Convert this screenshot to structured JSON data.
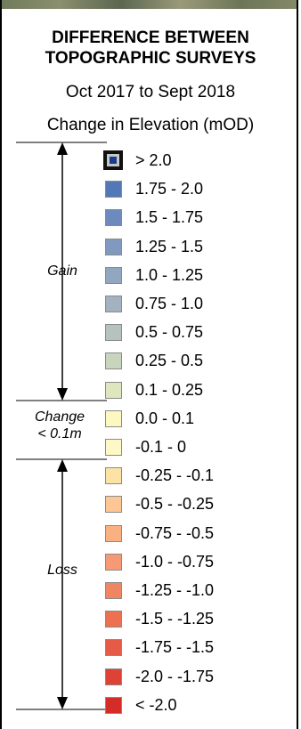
{
  "header": {
    "title_line1": "DIFFERENCE BETWEEN",
    "title_line2": "TOPOGRAPHIC SURVEYS",
    "period": "Oct 2017 to Sept 2018",
    "measure": "Change in Elevation (mOD)"
  },
  "side_labels": {
    "gain": "Gain",
    "change_line1": "Change",
    "change_line2": "< 0.1m",
    "loss": "Loss"
  },
  "legend": [
    {
      "label": "> 2.0",
      "color": "#1a3c8c",
      "kind": "outlined"
    },
    {
      "label": "1.75 - 2.0",
      "color": "#5179b8",
      "kind": "plain"
    },
    {
      "label": "1.5 - 1.75",
      "color": "#6c8bbc",
      "kind": "plain"
    },
    {
      "label": "1.25 - 1.5",
      "color": "#8199bf",
      "kind": "plain"
    },
    {
      "label": "1.0 - 1.25",
      "color": "#93a6c0",
      "kind": "plain"
    },
    {
      "label": "0.75 - 1.0",
      "color": "#a4b2c0",
      "kind": "plain"
    },
    {
      "label": "0.5 - 0.75",
      "color": "#b5c2bd",
      "kind": "plain"
    },
    {
      "label": "0.25 - 0.5",
      "color": "#c8d4bb",
      "kind": "plain"
    },
    {
      "label": "0.1 - 0.25",
      "color": "#dde6bd",
      "kind": "plain"
    },
    {
      "label": "0.0 - 0.1",
      "color": "#fdf7c0",
      "kind": "plain"
    },
    {
      "label": "-0.1 - 0",
      "color": "#fef8c6",
      "kind": "plain"
    },
    {
      "label": "-0.25 - -0.1",
      "color": "#fde2a6",
      "kind": "plain"
    },
    {
      "label": "-0.5 - -0.25",
      "color": "#fcc795",
      "kind": "plain"
    },
    {
      "label": "-0.75 - -0.5",
      "color": "#f9b182",
      "kind": "plain"
    },
    {
      "label": "-1.0 - -0.75",
      "color": "#f59a72",
      "kind": "plain"
    },
    {
      "label": "-1.25 - -1.0",
      "color": "#f08563",
      "kind": "plain"
    },
    {
      "label": "-1.5 - -1.25",
      "color": "#ec7051",
      "kind": "plain"
    },
    {
      "label": "-1.75 - -1.5",
      "color": "#e65b45",
      "kind": "plain"
    },
    {
      "label": "-2.0 - -1.75",
      "color": "#dd4234",
      "kind": "plain"
    },
    {
      "label": "< -2.0",
      "color": "#d42c26",
      "kind": "plain"
    }
  ]
}
